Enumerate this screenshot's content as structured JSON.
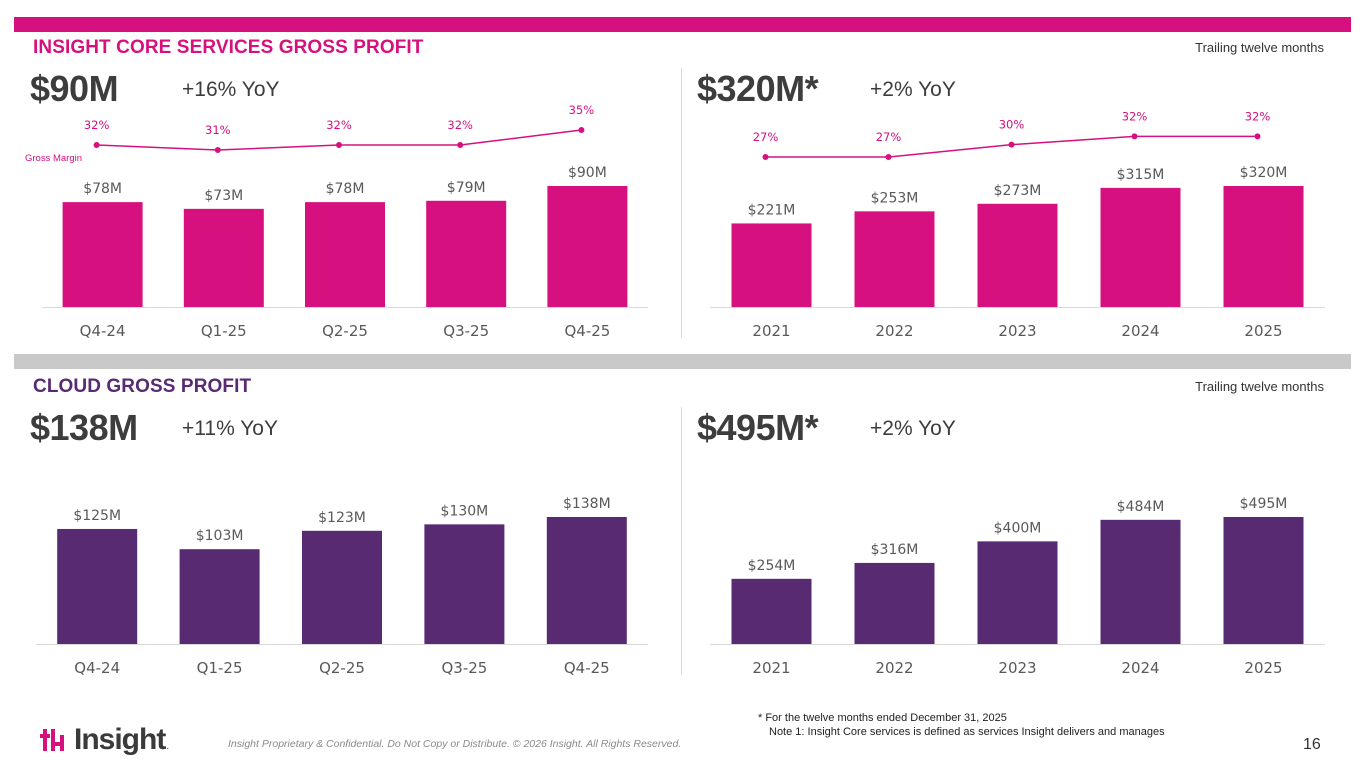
{
  "colors": {
    "magenta": "#d6107f",
    "purple": "#582a72",
    "band_top": "#d6107f",
    "band_mid": "#c9c9c9",
    "text": "#3d3d3d"
  },
  "sections": {
    "core": {
      "title": "INSIGHT CORE SERVICES GROSS PROFIT",
      "ttm_label": "Trailing twelve months"
    },
    "cloud": {
      "title": "CLOUD GROSS PROFIT",
      "ttm_label": "Trailing twelve months"
    }
  },
  "kpis": {
    "core_q": {
      "value": "$90M",
      "yoy": "+16% YoY"
    },
    "core_ttm": {
      "value": "$320M*",
      "yoy": "+2% YoY"
    },
    "cloud_q": {
      "value": "$138M",
      "yoy": "+11% YoY"
    },
    "cloud_ttm": {
      "value": "$495M*",
      "yoy": "+2% YoY"
    }
  },
  "chart_data": [
    {
      "id": "core_quarterly",
      "type": "bar",
      "color": "magenta",
      "categories": [
        "Q4-24",
        "Q1-25",
        "Q2-25",
        "Q3-25",
        "Q4-25"
      ],
      "values": [
        78,
        73,
        78,
        79,
        90
      ],
      "labels": [
        "$78M",
        "$73M",
        "$78M",
        "$79M",
        "$90M"
      ],
      "ylim": [
        0,
        90
      ],
      "line": {
        "name": "Gross Margin",
        "values": [
          32,
          31,
          32,
          32,
          35
        ],
        "labels": [
          "32%",
          "31%",
          "32%",
          "32%",
          "35%"
        ],
        "ylim": [
          27,
          35
        ]
      }
    },
    {
      "id": "core_annual",
      "type": "bar",
      "color": "magenta",
      "categories": [
        "2021",
        "2022",
        "2023",
        "2024",
        "2025"
      ],
      "values": [
        221,
        253,
        273,
        315,
        320
      ],
      "labels": [
        "$221M",
        "$253M",
        "$273M",
        "$315M",
        "$320M"
      ],
      "ylim": [
        0,
        320
      ],
      "line": {
        "name": "",
        "values": [
          27,
          27,
          30,
          32,
          32
        ],
        "labels": [
          "27%",
          "27%",
          "30%",
          "32%",
          "32%"
        ],
        "ylim": [
          27,
          35
        ]
      }
    },
    {
      "id": "cloud_quarterly",
      "type": "bar",
      "color": "purple",
      "categories": [
        "Q4-24",
        "Q1-25",
        "Q2-25",
        "Q3-25",
        "Q4-25"
      ],
      "values": [
        125,
        103,
        123,
        130,
        138
      ],
      "labels": [
        "$125M",
        "$103M",
        "$123M",
        "$130M",
        "$138M"
      ],
      "ylim": [
        0,
        138
      ]
    },
    {
      "id": "cloud_annual",
      "type": "bar",
      "color": "purple",
      "categories": [
        "2021",
        "2022",
        "2023",
        "2024",
        "2025"
      ],
      "values": [
        254,
        316,
        400,
        484,
        495
      ],
      "labels": [
        "$254M",
        "$316M",
        "$400M",
        "$484M",
        "$495M"
      ],
      "ylim": [
        0,
        495
      ]
    }
  ],
  "footnotes": {
    "line1": "* For the twelve months ended December 31, 2025",
    "line2": "Note 1: Insight Core services is defined as services Insight delivers and manages"
  },
  "footer": {
    "logo_text": "Insight",
    "logo_dot": ".",
    "legal": "Insight Proprietary & Confidential. Do Not Copy or Distribute. © 2026 Insight. All Rights Reserved.",
    "page_number": "16"
  }
}
